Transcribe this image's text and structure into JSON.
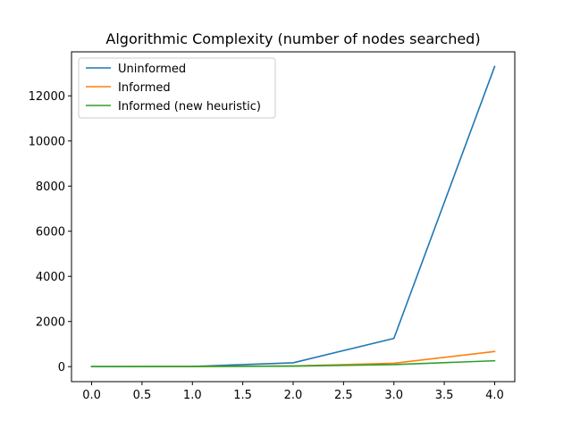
{
  "chart_data": {
    "type": "line",
    "title": "Algorithmic Complexity (number of nodes searched)",
    "xlabel": "",
    "ylabel": "",
    "x": [
      0,
      1,
      2,
      3,
      4
    ],
    "xlim": [
      -0.2,
      4.2
    ],
    "ylim": [
      -665,
      13950
    ],
    "xticks": [
      0.0,
      0.5,
      1.0,
      1.5,
      2.0,
      2.5,
      3.0,
      3.5,
      4.0
    ],
    "xtick_labels": [
      "0.0",
      "0.5",
      "1.0",
      "1.5",
      "2.0",
      "2.5",
      "3.0",
      "3.5",
      "4.0"
    ],
    "yticks": [
      0,
      2000,
      4000,
      6000,
      8000,
      10000,
      12000
    ],
    "ytick_labels": [
      "0",
      "2000",
      "4000",
      "6000",
      "8000",
      "10000",
      "12000"
    ],
    "grid": false,
    "legend_position": "top-left",
    "series": [
      {
        "name": "Uninformed",
        "color": "#1f77b4",
        "values": [
          1,
          8,
          170,
          1250,
          13300
        ]
      },
      {
        "name": "Informed",
        "color": "#ff7f0e",
        "values": [
          1,
          6,
          30,
          150,
          670
        ]
      },
      {
        "name": "Informed (new heuristic)",
        "color": "#2ca02c",
        "values": [
          1,
          5,
          20,
          90,
          260
        ]
      }
    ]
  }
}
